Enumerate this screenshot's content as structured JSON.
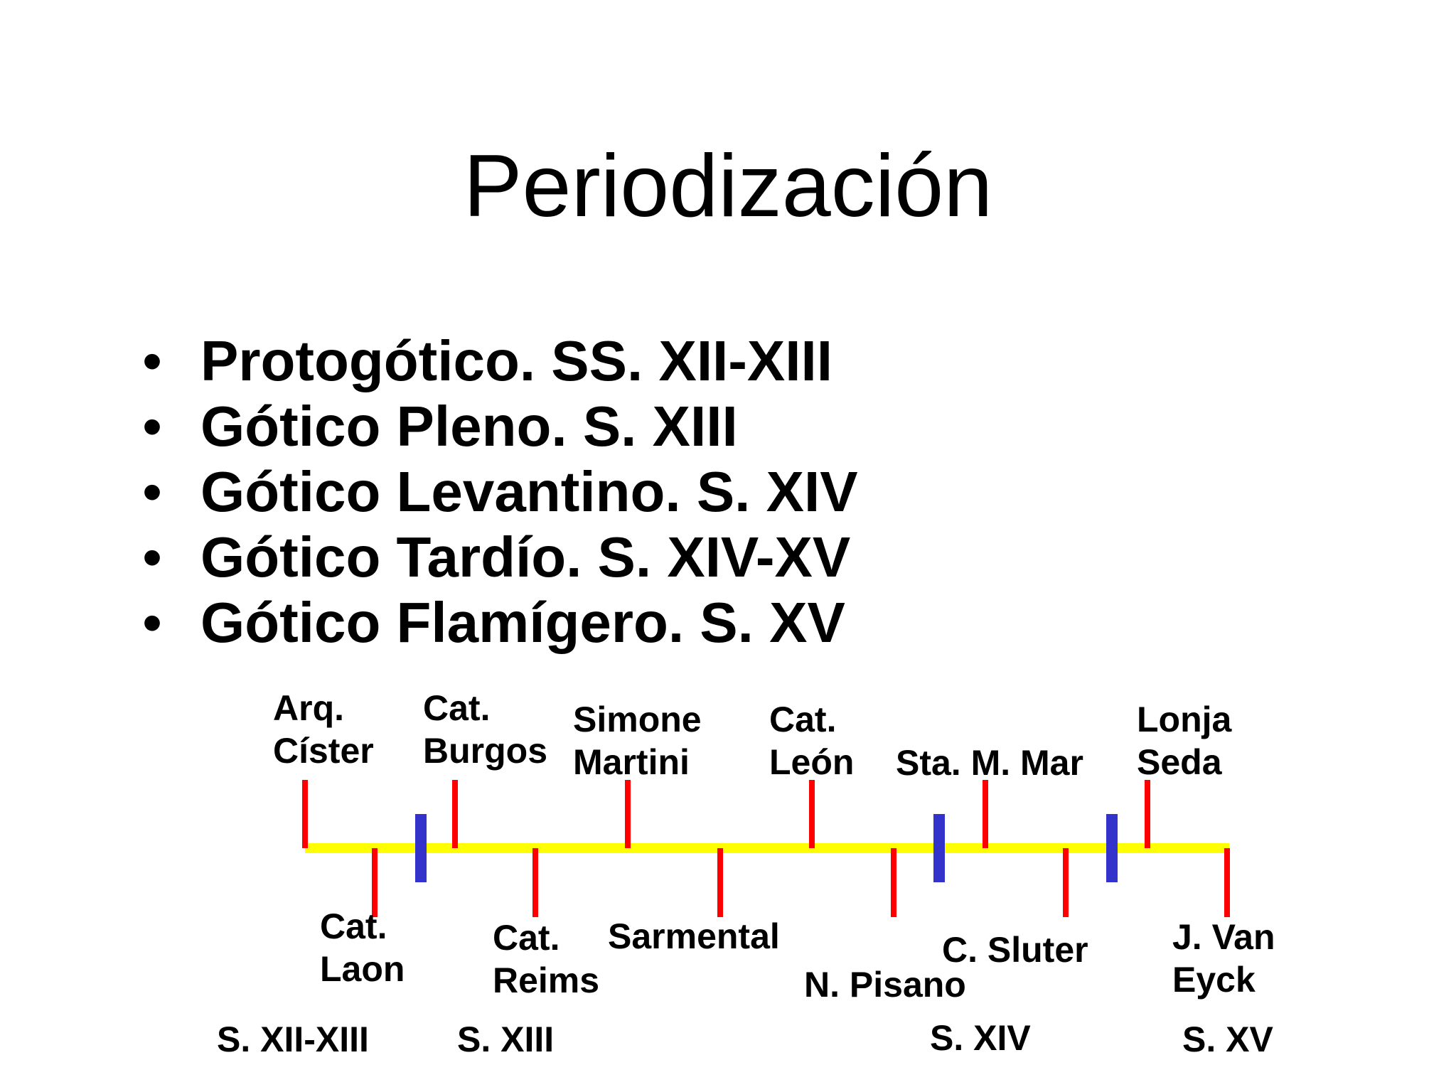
{
  "slide": {
    "title": "Periodización",
    "bullet_glyph": "•",
    "bullets": [
      "Protogótico. SS. XII-XIII",
      "Gótico Pleno. S. XIII",
      "Gótico Levantino. S. XIV",
      "Gótico Tardío. S. XIV-XV",
      "Gótico Flamígero. S. XV"
    ]
  },
  "timeline": {
    "colors": {
      "axis": "#ffff00",
      "event_tick": "#ff0000",
      "period_divider": "#3333cc"
    },
    "events_above": [
      {
        "line1": "Arq.",
        "line2": "Císter"
      },
      {
        "line1": "Cat.",
        "line2": "Burgos"
      },
      {
        "line1": "Simone",
        "line2": "Martini"
      },
      {
        "line1": "Cat.",
        "line2": "León"
      },
      {
        "line1": "Sta. M. Mar",
        "line2": ""
      },
      {
        "line1": "Lonja",
        "line2": "Seda"
      }
    ],
    "events_below": [
      {
        "line1": "Cat.",
        "line2": "Laon"
      },
      {
        "line1": "Cat.",
        "line2": "Reims"
      },
      {
        "line1": "Sarmental",
        "line2": ""
      },
      {
        "line1": "N. Pisano",
        "line2": ""
      },
      {
        "line1": "C. Sluter",
        "line2": ""
      },
      {
        "line1": "J. Van",
        "line2": "Eyck"
      }
    ],
    "periods": [
      "S. XII-XIII",
      "S. XIII",
      "S. XIV",
      "S. XV"
    ]
  }
}
